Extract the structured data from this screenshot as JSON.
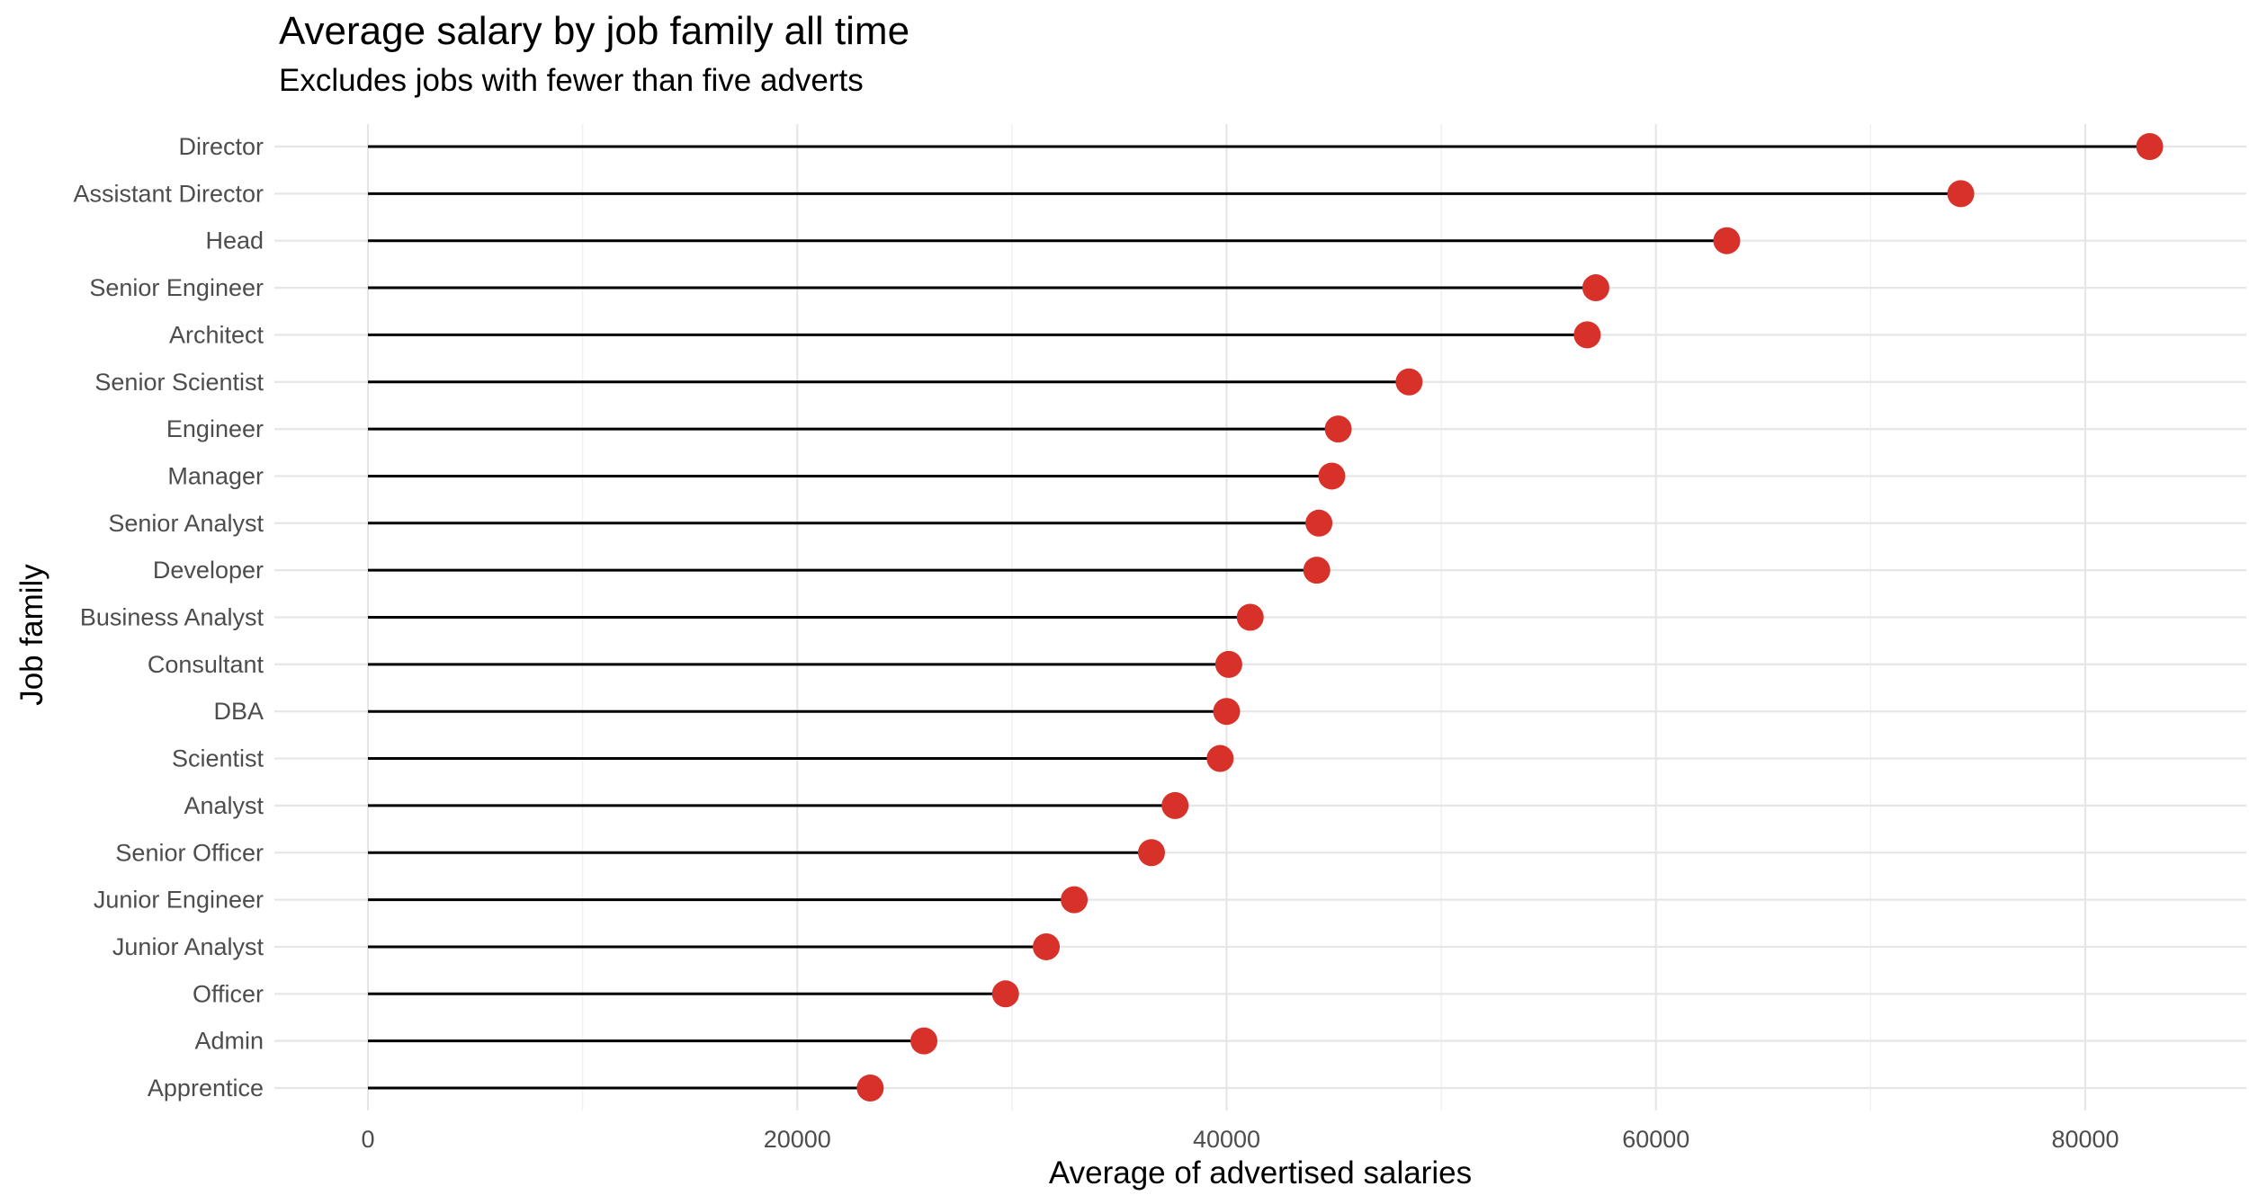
{
  "chart_data": {
    "type": "lollipop",
    "title": "Average salary by job family all time",
    "subtitle": "Excludes jobs with fewer than five adverts",
    "xlabel": "Average of advertised salaries",
    "ylabel": "Job family",
    "xlim": [
      -5200,
      86700
    ],
    "x_ticks": [
      0,
      20000,
      40000,
      60000,
      80000
    ],
    "grid": true,
    "point_color": "#d7312a",
    "stem_color": "#000000",
    "categories": [
      "Director",
      "Assistant Director",
      "Head",
      "Senior Engineer",
      "Architect",
      "Senior Scientist",
      "Engineer",
      "Manager",
      "Senior Analyst",
      "Developer",
      "Business Analyst",
      "Consultant",
      "DBA",
      "Scientist",
      "Analyst",
      "Senior Officer",
      "Junior Engineer",
      "Junior Analyst",
      "Officer",
      "Admin",
      "Apprentice"
    ],
    "values": [
      83000,
      74200,
      63300,
      57200,
      56800,
      48500,
      45200,
      44900,
      44300,
      44200,
      41100,
      40100,
      40000,
      39700,
      37600,
      36500,
      32900,
      31600,
      29700,
      25900,
      23400
    ]
  }
}
